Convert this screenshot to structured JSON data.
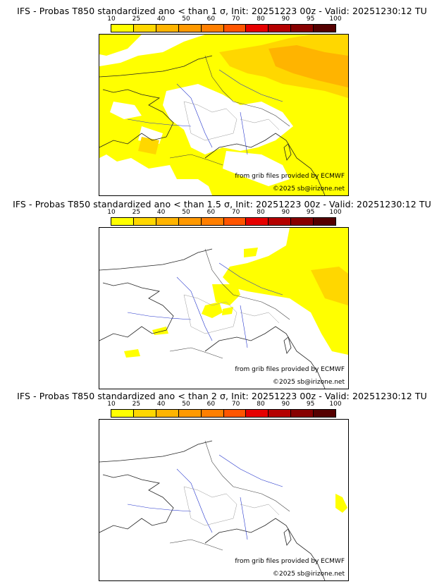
{
  "scale": {
    "ticks": [
      "10",
      "25",
      "40",
      "50",
      "60",
      "70",
      "80",
      "90",
      "95",
      "100"
    ],
    "colors": [
      "#ffff00",
      "#ffd700",
      "#ffb400",
      "#ff9900",
      "#ff7f00",
      "#ff5500",
      "#e60000",
      "#b40000",
      "#870000",
      "#550000"
    ]
  },
  "panels": [
    {
      "title": "IFS - Probas T850  standardized ano < than 1 σ, Init: 20251223 00z - Valid: 20251230:12 TU",
      "source": "from grib files provided by ECMWF",
      "copyright": "©2025 sb@irizone.net"
    },
    {
      "title": "IFS - Probas T850  standardized ano < than 1.5 σ, Init: 20251223 00z - Valid: 20251230:12 TU",
      "source": "from grib files provided by ECMWF",
      "copyright": "©2025 sb@irizone.net"
    },
    {
      "title": "IFS - Probas T850  standardized ano < than 2 σ, Init: 20251223 00z - Valid: 20251230:12 TU",
      "source": "from grib files provided by ECMWF",
      "copyright": "©2025 sb@irizone.net"
    }
  ]
}
